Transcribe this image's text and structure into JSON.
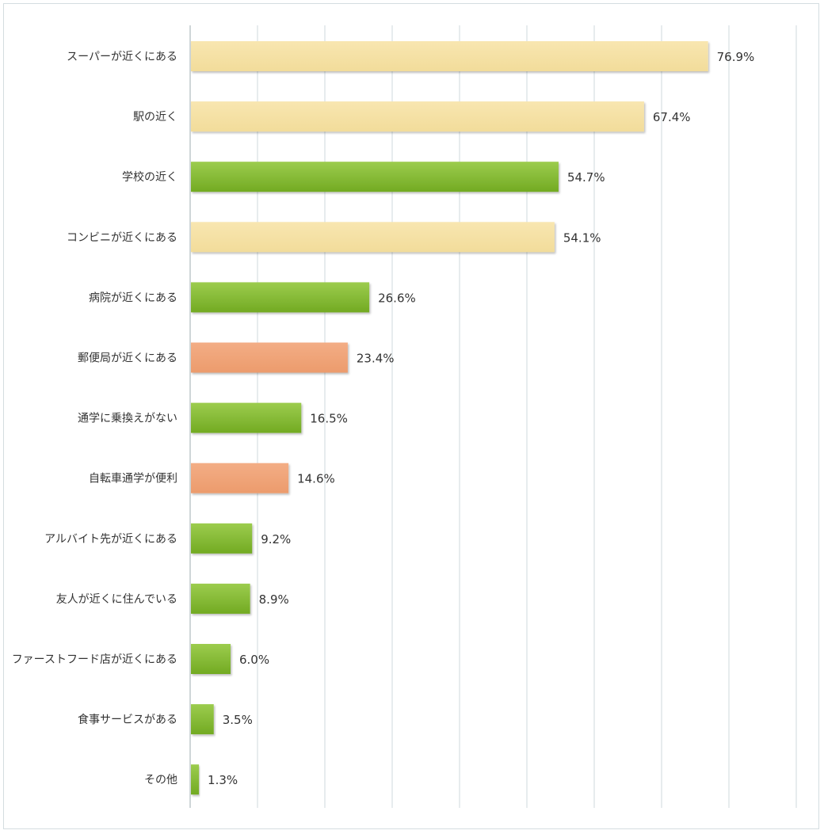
{
  "chart_data": {
    "type": "bar",
    "orientation": "horizontal",
    "categories": [
      "スーパーが近くにある",
      "駅の近く",
      "学校の近く",
      "コンビニが近くにある",
      "病院が近くにある",
      "郵便局が近くにある",
      "通学に乗換えがない",
      "自転車通学が便利",
      "アルバイト先が近くにある",
      "友人が近くに住んでいる",
      "ファーストフード店が近くにある",
      "食事サービスがある",
      "その他"
    ],
    "values": [
      76.9,
      67.4,
      54.7,
      54.1,
      26.6,
      23.4,
      16.5,
      14.6,
      9.2,
      8.9,
      6.0,
      3.5,
      1.3
    ],
    "value_labels": [
      "76.9%",
      "67.4%",
      "54.7%",
      "54.1%",
      "26.6%",
      "23.4%",
      "16.5%",
      "14.6%",
      "9.2%",
      "8.9%",
      "6.0%",
      "3.5%",
      "1.3%"
    ],
    "bar_color_keys": [
      "yellow",
      "yellow",
      "green",
      "yellow",
      "green",
      "orange",
      "green",
      "orange",
      "green",
      "green",
      "green",
      "green",
      "green"
    ],
    "colors": {
      "yellow": "#f5e0a3",
      "green": "#7fb82e",
      "orange": "#f0a377"
    },
    "xlim": [
      0,
      90
    ],
    "grid": true,
    "title": "",
    "xlabel": "",
    "ylabel": ""
  }
}
